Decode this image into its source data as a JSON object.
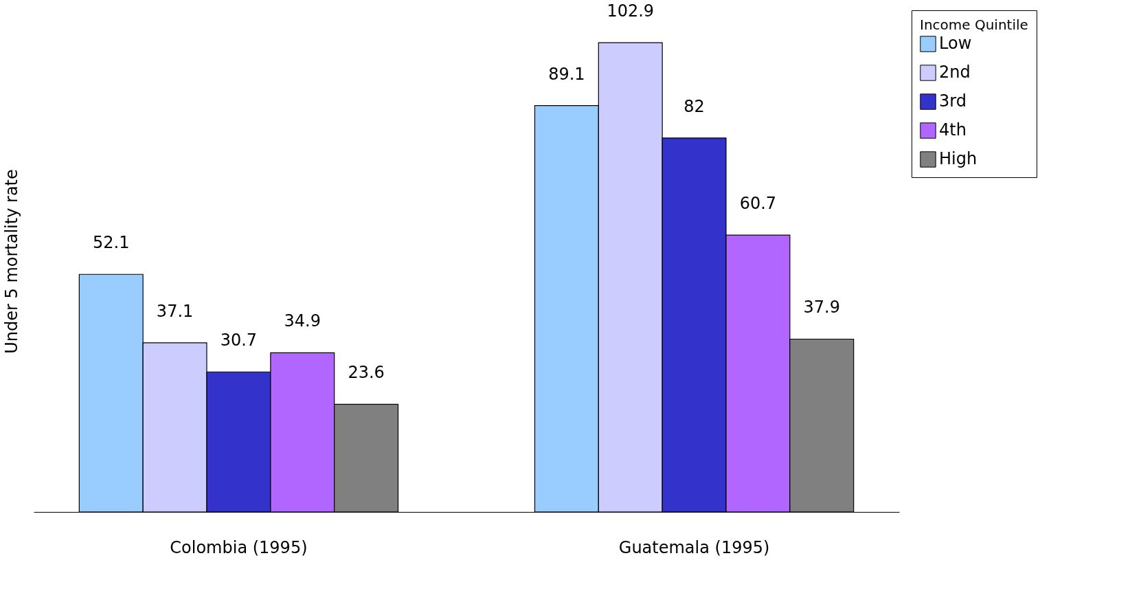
{
  "chart_data": {
    "type": "bar",
    "ylabel": "Under 5 mortality rate",
    "legend_title": "Income Quintile",
    "categories": [
      "Colombia (1995)",
      "Guatemala (1995)"
    ],
    "series": [
      {
        "name": "Low",
        "color": "#99ccff",
        "values": [
          52.1,
          89.1
        ]
      },
      {
        "name": "2nd",
        "color": "#ccccff",
        "values": [
          37.1,
          102.9
        ]
      },
      {
        "name": "3rd",
        "color": "#3333cc",
        "values": [
          30.7,
          82
        ]
      },
      {
        "name": "4th",
        "color": "#b066ff",
        "values": [
          34.9,
          60.7
        ]
      },
      {
        "name": "High",
        "color": "#808080",
        "values": [
          23.6,
          37.9
        ]
      }
    ],
    "tick_labels": "x",
    "data_labels": true,
    "legend": "right",
    "grid": false
  }
}
